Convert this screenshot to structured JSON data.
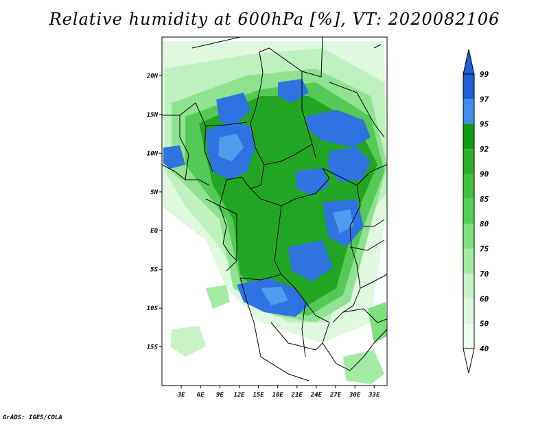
{
  "title": "Relative humidity at 600hPa [%], VT: 2020082106",
  "credit": "GrADS: IGES/COLA",
  "map": {
    "lat_labels": [
      "20N",
      "15N",
      "10N",
      "5N",
      "EQ",
      "5S",
      "10S",
      "15S"
    ],
    "lat_values": [
      20,
      15,
      10,
      5,
      0,
      -5,
      -10,
      -15
    ],
    "lon_labels": [
      "3E",
      "6E",
      "9E",
      "12E",
      "15E",
      "18E",
      "21E",
      "24E",
      "27E",
      "30E",
      "33E"
    ],
    "lon_values": [
      3,
      6,
      9,
      12,
      15,
      18,
      21,
      24,
      27,
      30,
      33
    ],
    "lon_range": [
      0,
      35
    ],
    "lat_range": [
      -20,
      25
    ]
  },
  "colorbar": {
    "labels": [
      "99",
      "97",
      "95",
      "92",
      "90",
      "85",
      "80",
      "75",
      "70",
      "60",
      "50",
      "40"
    ],
    "colors": [
      "#1f5fd6",
      "#3f8ee8",
      "#139a13",
      "#2bb02b",
      "#3dc23d",
      "#52d152",
      "#7de07d",
      "#a4eca4",
      "#c6f4c6",
      "#dcf8dc",
      "#eefdee",
      "#ffffff"
    ],
    "top_arrow_color": "#1f5fd6",
    "bottom_arrow_color": "#ffffff"
  }
}
